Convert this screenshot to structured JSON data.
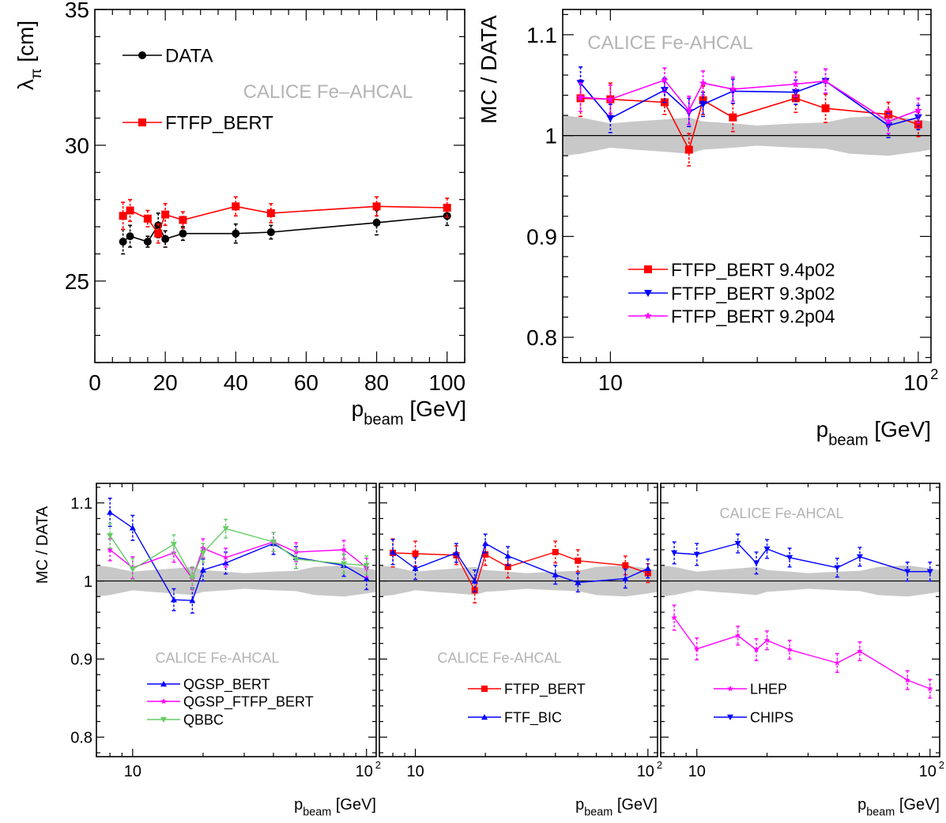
{
  "colors": {
    "data": "#000000",
    "ftfp_bert": "#ff0000",
    "blue": "#0000ff",
    "magenta": "#ff00ff",
    "green": "#66cc66",
    "band": "#c8c8c8",
    "watermark": "#b4b4b4"
  },
  "chart_data": [
    {
      "id": "p1",
      "type": "line",
      "xscale": "linear",
      "xlim": [
        0,
        105
      ],
      "ylim": [
        22,
        35
      ],
      "xticks": [
        0,
        20,
        40,
        60,
        80,
        100
      ],
      "yticks": [
        25,
        30,
        35
      ],
      "xlabel": "p",
      "xlabel_sub": "beam",
      "xlabel_unit": "[GeV]",
      "ylabel": "λ",
      "ylabel_sub": "π",
      "ylabel_unit": "[cm]",
      "watermark": "CALICE Fe–AHCAL",
      "grid": false,
      "series": [
        {
          "name": "DATA",
          "color": "#000000",
          "marker": "circle",
          "x": [
            8,
            10,
            15,
            18,
            20,
            25,
            40,
            50,
            80,
            100
          ],
          "y": [
            26.45,
            26.65,
            26.45,
            27.05,
            26.55,
            26.75,
            26.75,
            26.8,
            27.15,
            27.4
          ],
          "err": [
            0.45,
            0.4,
            0.2,
            0.45,
            0.3,
            0.25,
            0.35,
            0.25,
            0.45,
            0.35
          ]
        },
        {
          "name": "FTFP_BERT",
          "color": "#ff0000",
          "marker": "square",
          "x": [
            8,
            10,
            15,
            18,
            20,
            25,
            40,
            50,
            80,
            100
          ],
          "y": [
            27.4,
            27.6,
            27.3,
            26.75,
            27.45,
            27.25,
            27.75,
            27.5,
            27.75,
            27.7
          ],
          "err": [
            0.5,
            0.4,
            0.3,
            0.35,
            0.4,
            0.3,
            0.35,
            0.35,
            0.35,
            0.35
          ]
        }
      ],
      "legend": [
        {
          "label": "DATA",
          "color": "#000000",
          "marker": "circle"
        },
        {
          "label": "FTFP_BERT",
          "color": "#ff0000",
          "marker": "square"
        }
      ]
    },
    {
      "id": "p2",
      "type": "line",
      "xscale": "log",
      "xlim": [
        7,
        110
      ],
      "ylim": [
        0.775,
        1.125
      ],
      "xticks": [
        10,
        100
      ],
      "yticks": [
        0.8,
        0.9,
        1,
        1.1
      ],
      "xlabel": "p",
      "xlabel_sub": "beam",
      "xlabel_unit": "[GeV]",
      "ylabel": "MC / DATA",
      "watermark": "CALICE Fe-AHCAL",
      "band_x": [
        7,
        8,
        10,
        12,
        15,
        18,
        20,
        25,
        30,
        40,
        50,
        60,
        80,
        100,
        110
      ],
      "band_half": [
        0.02,
        0.018,
        0.012,
        0.014,
        0.016,
        0.018,
        0.014,
        0.012,
        0.01,
        0.012,
        0.013,
        0.018,
        0.02,
        0.016,
        0.014
      ],
      "series": [
        {
          "name": "FTFP_BERT 9.4p02",
          "color": "#ff0000",
          "marker": "square",
          "x": [
            8,
            10,
            15,
            18,
            20,
            25,
            40,
            50,
            80,
            100
          ],
          "y": [
            1.037,
            1.036,
            1.033,
            0.986,
            1.035,
            1.018,
            1.037,
            1.027,
            1.021,
            1.011
          ],
          "err": [
            0.018,
            0.016,
            0.012,
            0.016,
            0.014,
            0.014,
            0.014,
            0.014,
            0.012,
            0.012
          ]
        },
        {
          "name": "FTFP_BERT 9.3p02",
          "color": "#0000ff",
          "marker": "tri-down",
          "x": [
            8,
            10,
            15,
            18,
            20,
            25,
            40,
            50,
            80,
            100
          ],
          "y": [
            1.052,
            1.017,
            1.045,
            1.023,
            1.031,
            1.044,
            1.043,
            1.054,
            1.01,
            1.018
          ],
          "err": [
            0.016,
            0.014,
            0.012,
            0.014,
            0.012,
            0.012,
            0.012,
            0.012,
            0.012,
            0.012
          ]
        },
        {
          "name": "FTFP_BERT 9.2p04",
          "color": "#ff00ff",
          "marker": "star",
          "x": [
            8,
            10,
            15,
            18,
            20,
            25,
            40,
            50,
            80,
            100
          ],
          "y": [
            1.038,
            1.036,
            1.055,
            1.025,
            1.052,
            1.046,
            1.051,
            1.054,
            1.014,
            1.025
          ],
          "err": [
            0.014,
            0.014,
            0.012,
            0.014,
            0.012,
            0.012,
            0.012,
            0.012,
            0.012,
            0.012
          ]
        }
      ],
      "legend": [
        {
          "label": "FTFP_BERT 9.4p02",
          "color": "#ff0000",
          "marker": "square"
        },
        {
          "label": "FTFP_BERT 9.3p02",
          "color": "#0000ff",
          "marker": "tri-down"
        },
        {
          "label": "FTFP_BERT 9.2p04",
          "color": "#ff00ff",
          "marker": "star"
        }
      ]
    },
    {
      "id": "p3",
      "type": "line",
      "xscale": "log",
      "xlim": [
        7,
        110
      ],
      "ylim": [
        0.775,
        1.125
      ],
      "xticks": [
        10,
        100
      ],
      "yticks": [
        0.8,
        0.9,
        1,
        1.1
      ],
      "xlabel": "p",
      "xlabel_sub": "beam",
      "xlabel_unit": "[GeV]",
      "ylabel": "MC / DATA",
      "watermark": "CALICE Fe-AHCAL",
      "band_x": [
        7,
        8,
        10,
        12,
        15,
        18,
        20,
        25,
        30,
        40,
        50,
        60,
        80,
        100,
        110
      ],
      "band_half": [
        0.02,
        0.018,
        0.012,
        0.014,
        0.016,
        0.018,
        0.014,
        0.012,
        0.01,
        0.012,
        0.013,
        0.018,
        0.02,
        0.016,
        0.014
      ],
      "series": [
        {
          "name": "QGSP_BERT",
          "color": "#0000ff",
          "marker": "tri-up",
          "x": [
            8,
            10,
            15,
            18,
            20,
            25,
            40,
            50,
            80,
            100
          ],
          "y": [
            1.088,
            1.068,
            0.976,
            0.975,
            1.014,
            1.023,
            1.048,
            1.03,
            1.02,
            1.003
          ],
          "err": [
            0.018,
            0.016,
            0.014,
            0.016,
            0.014,
            0.014,
            0.014,
            0.014,
            0.014,
            0.014
          ]
        },
        {
          "name": "QGSP_FTFP_BERT",
          "color": "#ff00ff",
          "marker": "star",
          "x": [
            8,
            10,
            15,
            18,
            20,
            25,
            40,
            50,
            80,
            100
          ],
          "y": [
            1.04,
            1.017,
            1.036,
            1.003,
            1.042,
            1.03,
            1.05,
            1.037,
            1.04,
            1.017
          ],
          "err": [
            0.014,
            0.014,
            0.012,
            0.014,
            0.012,
            0.012,
            0.012,
            0.012,
            0.012,
            0.012
          ]
        },
        {
          "name": "QBBC",
          "color": "#66cc66",
          "marker": "tri-down",
          "x": [
            8,
            10,
            15,
            18,
            20,
            25,
            40,
            50,
            80,
            100
          ],
          "y": [
            1.058,
            1.015,
            1.047,
            1.004,
            1.036,
            1.067,
            1.05,
            1.028,
            1.022,
            1.02
          ],
          "err": [
            0.016,
            0.014,
            0.012,
            0.014,
            0.012,
            0.012,
            0.012,
            0.012,
            0.012,
            0.012
          ]
        }
      ],
      "legend": [
        {
          "label": "QGSP_BERT",
          "color": "#0000ff",
          "marker": "tri-up"
        },
        {
          "label": "QGSP_FTFP_BERT",
          "color": "#ff00ff",
          "marker": "star"
        },
        {
          "label": "QBBC",
          "color": "#66cc66",
          "marker": "tri-down"
        }
      ]
    },
    {
      "id": "p4",
      "type": "line",
      "xscale": "log",
      "xlim": [
        7,
        110
      ],
      "ylim": [
        0.775,
        1.125
      ],
      "xticks": [
        10,
        100
      ],
      "yticks": [
        0.8,
        0.9,
        1,
        1.1
      ],
      "xlabel": "p",
      "xlabel_sub": "beam",
      "xlabel_unit": "[GeV]",
      "ylabel": "",
      "watermark": "CALICE Fe-AHCAL",
      "band_x": [
        7,
        8,
        10,
        12,
        15,
        18,
        20,
        25,
        30,
        40,
        50,
        60,
        80,
        100,
        110
      ],
      "band_half": [
        0.02,
        0.018,
        0.012,
        0.014,
        0.016,
        0.018,
        0.014,
        0.012,
        0.01,
        0.012,
        0.013,
        0.018,
        0.02,
        0.016,
        0.014
      ],
      "series": [
        {
          "name": "FTFP_BERT",
          "color": "#ff0000",
          "marker": "square",
          "x": [
            8,
            10,
            15,
            18,
            20,
            25,
            40,
            50,
            80,
            100
          ],
          "y": [
            1.036,
            1.035,
            1.033,
            0.988,
            1.034,
            1.018,
            1.037,
            1.026,
            1.02,
            1.01
          ],
          "err": [
            0.018,
            0.016,
            0.012,
            0.016,
            0.014,
            0.014,
            0.014,
            0.014,
            0.012,
            0.012
          ]
        },
        {
          "name": "FTF_BIC",
          "color": "#0000ff",
          "marker": "tri-up",
          "x": [
            8,
            10,
            15,
            18,
            20,
            25,
            40,
            50,
            80,
            100
          ],
          "y": [
            1.037,
            1.016,
            1.036,
            1.0,
            1.048,
            1.032,
            1.008,
            0.998,
            1.003,
            1.016
          ],
          "err": [
            0.016,
            0.014,
            0.012,
            0.014,
            0.012,
            0.012,
            0.012,
            0.012,
            0.012,
            0.012
          ]
        }
      ],
      "legend": [
        {
          "label": "FTFP_BERT",
          "color": "#ff0000",
          "marker": "square"
        },
        {
          "label": "FTF_BIC",
          "color": "#0000ff",
          "marker": "tri-up"
        }
      ]
    },
    {
      "id": "p5",
      "type": "line",
      "xscale": "log",
      "xlim": [
        7,
        110
      ],
      "ylim": [
        0.775,
        1.125
      ],
      "xticks": [
        10,
        100
      ],
      "yticks": [
        0.8,
        0.9,
        1,
        1.1
      ],
      "xlabel": "p",
      "xlabel_sub": "beam",
      "xlabel_unit": "[GeV]",
      "ylabel": "",
      "watermark": "CALICE Fe-AHCAL",
      "band_x": [
        7,
        8,
        10,
        12,
        15,
        18,
        20,
        25,
        30,
        40,
        50,
        60,
        80,
        100,
        110
      ],
      "band_half": [
        0.02,
        0.018,
        0.012,
        0.014,
        0.016,
        0.018,
        0.014,
        0.012,
        0.01,
        0.012,
        0.013,
        0.018,
        0.02,
        0.016,
        0.014
      ],
      "series": [
        {
          "name": "LHEP",
          "color": "#ff00ff",
          "marker": "star",
          "x": [
            8,
            10,
            15,
            18,
            20,
            25,
            40,
            50,
            80,
            100
          ],
          "y": [
            0.953,
            0.913,
            0.93,
            0.912,
            0.924,
            0.912,
            0.895,
            0.91,
            0.873,
            0.862
          ],
          "err": [
            0.016,
            0.014,
            0.012,
            0.014,
            0.012,
            0.012,
            0.012,
            0.012,
            0.012,
            0.012
          ]
        },
        {
          "name": "CHIPS",
          "color": "#0000ff",
          "marker": "tri-down",
          "x": [
            8,
            10,
            15,
            18,
            20,
            25,
            40,
            50,
            80,
            100
          ],
          "y": [
            1.036,
            1.034,
            1.048,
            1.023,
            1.041,
            1.03,
            1.017,
            1.031,
            1.012,
            1.012
          ],
          "err": [
            0.014,
            0.014,
            0.012,
            0.014,
            0.012,
            0.012,
            0.012,
            0.012,
            0.012,
            0.012
          ]
        }
      ],
      "legend": [
        {
          "label": "LHEP",
          "color": "#ff00ff",
          "marker": "star"
        },
        {
          "label": "CHIPS",
          "color": "#0000ff",
          "marker": "tri-down"
        }
      ]
    }
  ]
}
